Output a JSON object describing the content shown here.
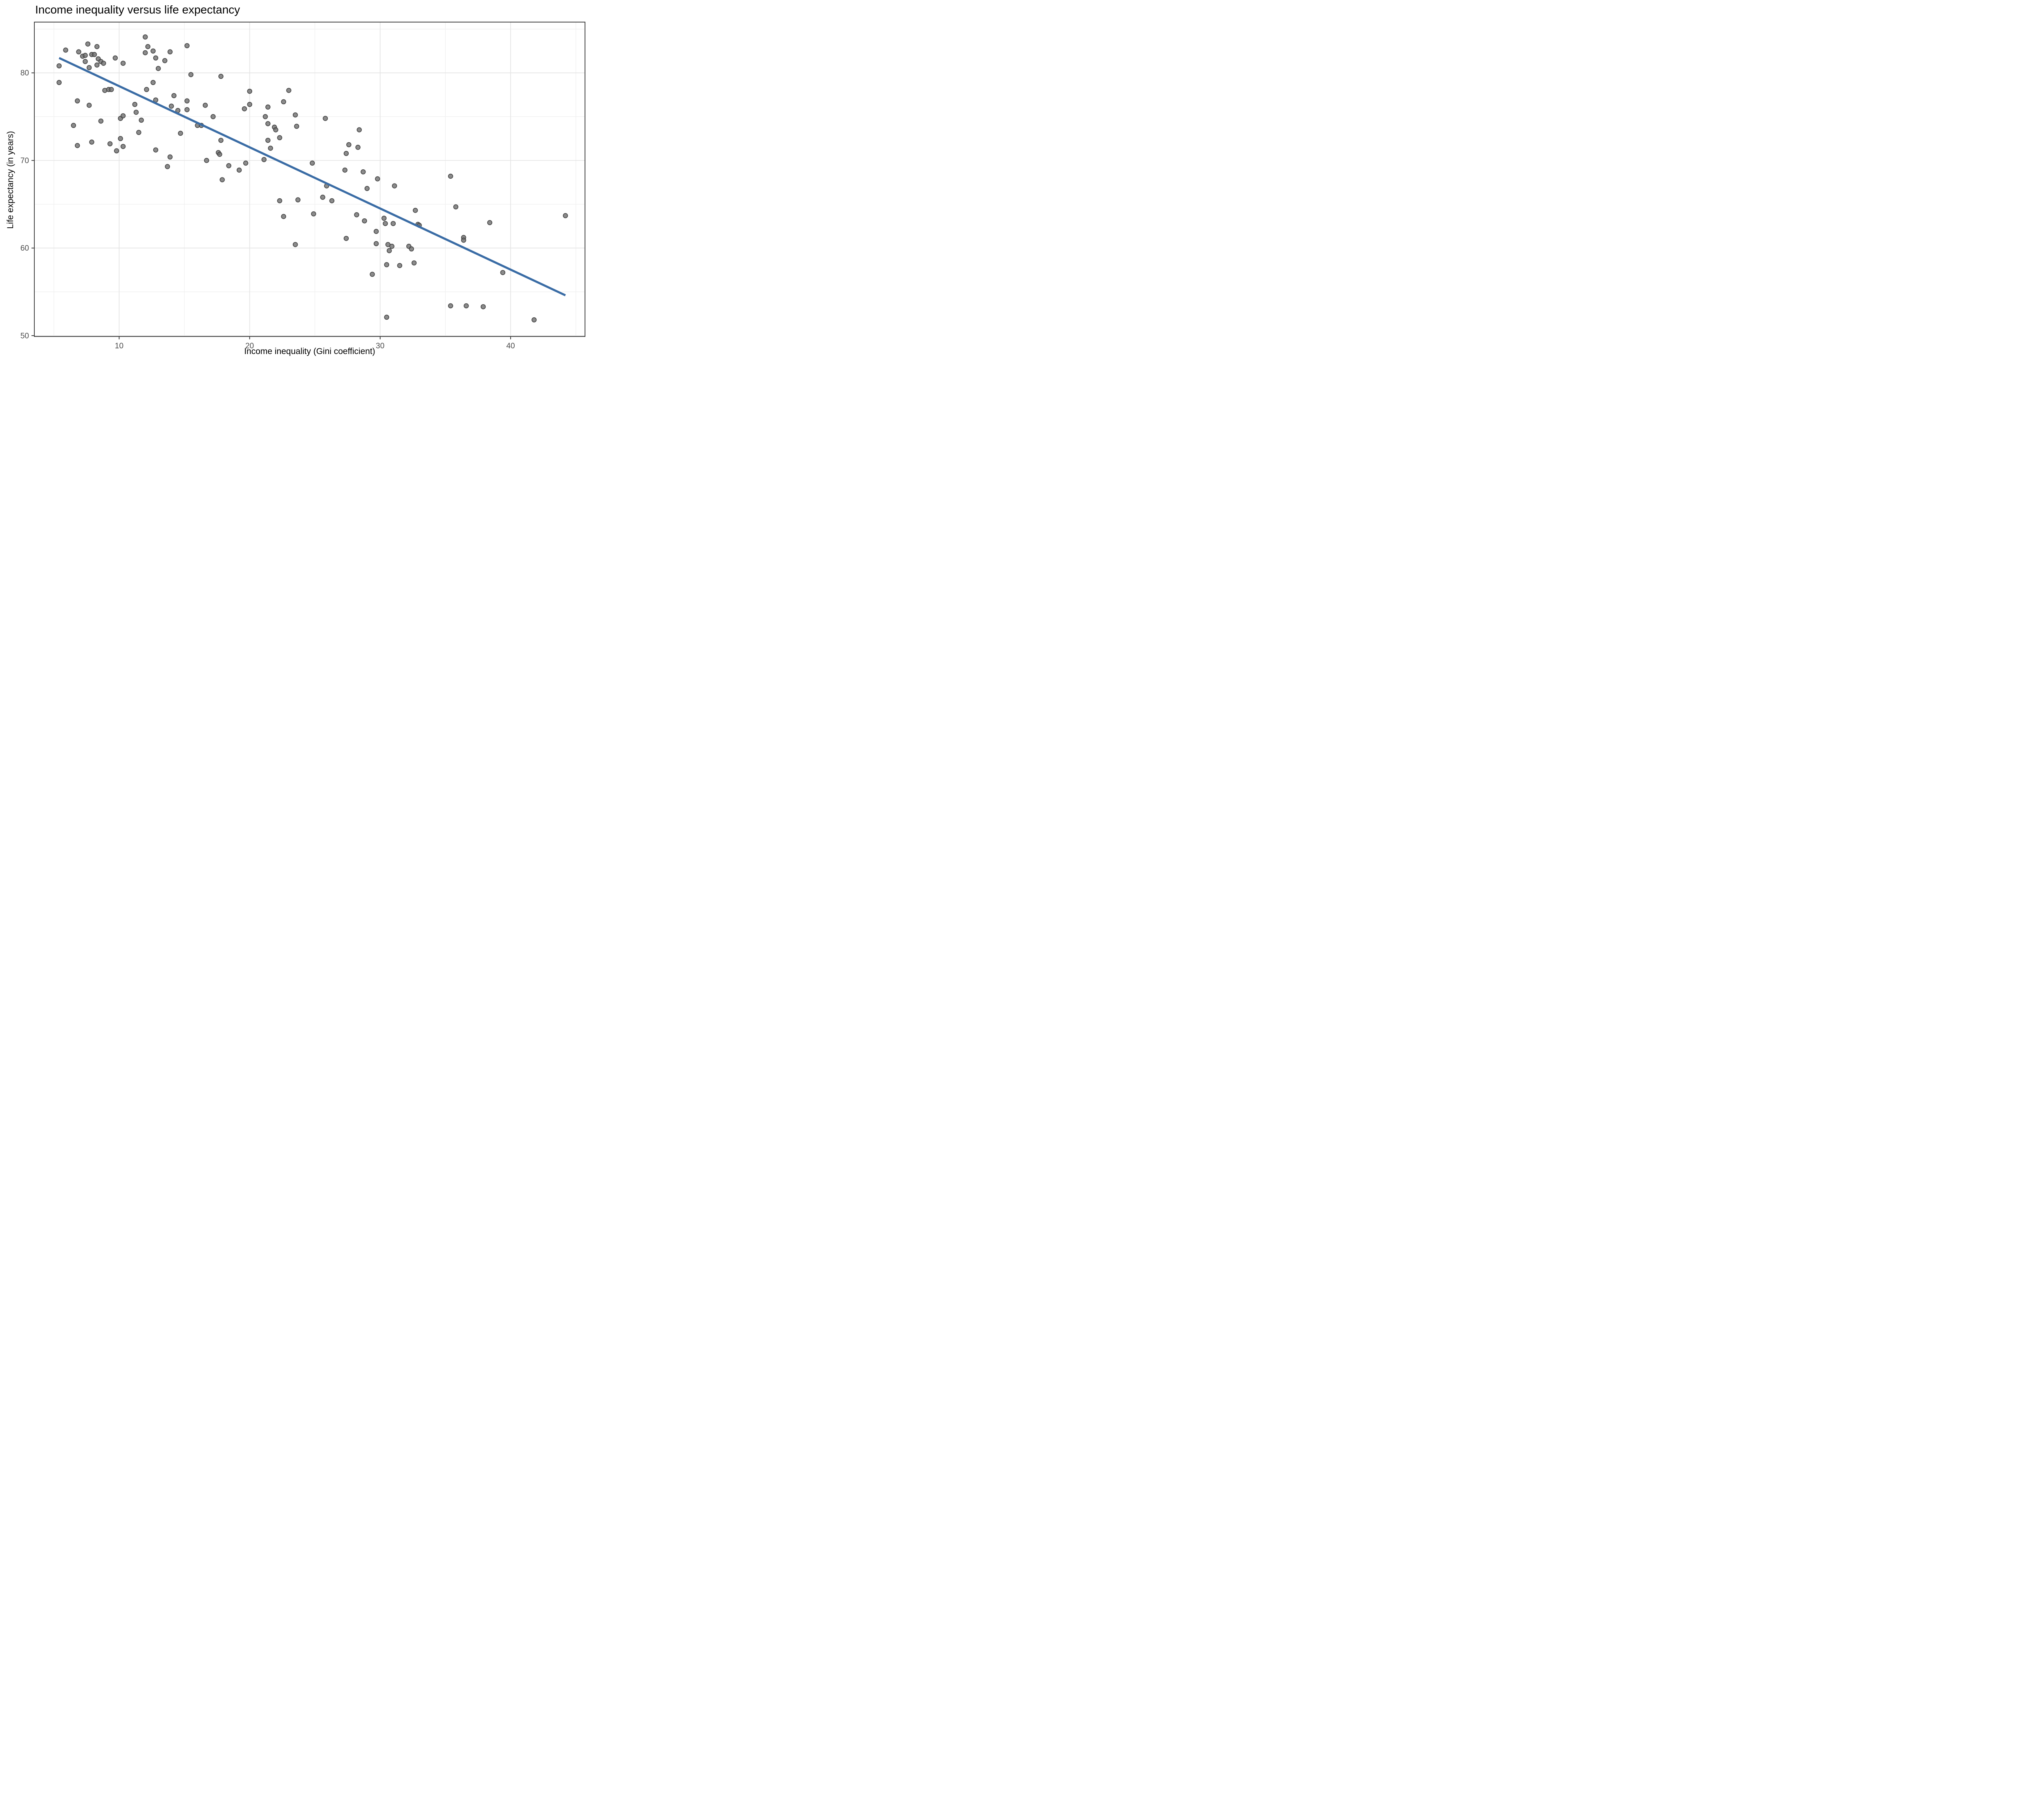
{
  "title": "Income inequality versus life expectancy",
  "chart_data": {
    "type": "scatter",
    "title": "Income inequality versus life expectancy",
    "xlabel": "Income inequality (Gini coefficient)",
    "ylabel": "Life expectancy (in years)",
    "xlim": [
      3.5,
      45.7
    ],
    "ylim": [
      49.9,
      85.8
    ],
    "x_major_ticks": [
      10,
      20,
      30,
      40
    ],
    "y_major_ticks": [
      50,
      60,
      70,
      80
    ],
    "x_minor_ticks": [
      5,
      15,
      25,
      35,
      45
    ],
    "y_minor_ticks": [
      55,
      65,
      75,
      85
    ],
    "grid": true,
    "legend": false,
    "points": [
      [
        5.9,
        82.6
      ],
      [
        6.9,
        82.4
      ],
      [
        7.6,
        83.3
      ],
      [
        8.3,
        83.0
      ],
      [
        7.2,
        81.9
      ],
      [
        7.4,
        82.0
      ],
      [
        7.9,
        82.1
      ],
      [
        8.1,
        82.1
      ],
      [
        7.4,
        81.3
      ],
      [
        7.7,
        80.6
      ],
      [
        8.4,
        81.6
      ],
      [
        8.6,
        81.3
      ],
      [
        8.3,
        80.9
      ],
      [
        8.8,
        81.1
      ],
      [
        5.4,
        80.8
      ],
      [
        9.7,
        81.7
      ],
      [
        10.3,
        81.1
      ],
      [
        12.0,
        84.1
      ],
      [
        12.2,
        83.0
      ],
      [
        12.0,
        82.3
      ],
      [
        12.6,
        82.5
      ],
      [
        12.8,
        81.7
      ],
      [
        13.5,
        81.4
      ],
      [
        13.9,
        82.4
      ],
      [
        13.0,
        80.5
      ],
      [
        5.4,
        78.9
      ],
      [
        12.6,
        78.9
      ],
      [
        12.1,
        78.1
      ],
      [
        8.9,
        78.0
      ],
      [
        9.2,
        78.1
      ],
      [
        9.4,
        78.1
      ],
      [
        6.8,
        76.8
      ],
      [
        7.7,
        76.3
      ],
      [
        11.2,
        76.4
      ],
      [
        12.8,
        76.9
      ],
      [
        14.0,
        76.2
      ],
      [
        11.3,
        75.5
      ],
      [
        10.1,
        74.8
      ],
      [
        10.3,
        75.1
      ],
      [
        8.6,
        74.5
      ],
      [
        11.7,
        74.6
      ],
      [
        6.5,
        74.0
      ],
      [
        15.2,
        83.1
      ],
      [
        15.5,
        79.8
      ],
      [
        17.8,
        79.6
      ],
      [
        20.0,
        77.9
      ],
      [
        23.0,
        78.0
      ],
      [
        15.2,
        76.8
      ],
      [
        16.6,
        76.3
      ],
      [
        15.2,
        75.8
      ],
      [
        14.5,
        75.7
      ],
      [
        14.2,
        77.4
      ],
      [
        16.0,
        74.0
      ],
      [
        16.3,
        74.0
      ],
      [
        17.2,
        75.0
      ],
      [
        20.0,
        76.4
      ],
      [
        19.6,
        75.9
      ],
      [
        21.4,
        76.1
      ],
      [
        22.6,
        76.7
      ],
      [
        23.5,
        75.2
      ],
      [
        21.2,
        75.0
      ],
      [
        21.4,
        74.2
      ],
      [
        23.6,
        73.9
      ],
      [
        25.8,
        74.8
      ],
      [
        6.8,
        71.7
      ],
      [
        7.9,
        72.1
      ],
      [
        9.3,
        71.9
      ],
      [
        10.1,
        72.5
      ],
      [
        9.8,
        71.1
      ],
      [
        10.3,
        71.6
      ],
      [
        11.5,
        73.2
      ],
      [
        12.8,
        71.2
      ],
      [
        13.9,
        70.4
      ],
      [
        13.7,
        69.3
      ],
      [
        14.7,
        73.1
      ],
      [
        17.8,
        72.3
      ],
      [
        17.6,
        70.9
      ],
      [
        17.7,
        70.7
      ],
      [
        16.7,
        70.0
      ],
      [
        18.4,
        69.4
      ],
      [
        19.2,
        68.9
      ],
      [
        19.7,
        69.7
      ],
      [
        17.9,
        67.8
      ],
      [
        21.1,
        70.1
      ],
      [
        21.4,
        72.3
      ],
      [
        21.6,
        71.4
      ],
      [
        21.9,
        73.8
      ],
      [
        22.0,
        73.5
      ],
      [
        22.3,
        72.6
      ],
      [
        24.8,
        69.7
      ],
      [
        22.3,
        65.4
      ],
      [
        23.7,
        65.5
      ],
      [
        22.6,
        63.6
      ],
      [
        28.4,
        73.5
      ],
      [
        27.6,
        71.8
      ],
      [
        28.3,
        71.5
      ],
      [
        27.4,
        70.8
      ],
      [
        27.3,
        68.9
      ],
      [
        28.7,
        68.7
      ],
      [
        29.8,
        67.9
      ],
      [
        31.1,
        67.1
      ],
      [
        25.9,
        67.1
      ],
      [
        29.0,
        66.8
      ],
      [
        25.6,
        65.8
      ],
      [
        26.3,
        65.4
      ],
      [
        35.4,
        68.2
      ],
      [
        24.9,
        63.9
      ],
      [
        28.2,
        63.8
      ],
      [
        28.8,
        63.1
      ],
      [
        30.3,
        63.4
      ],
      [
        30.4,
        62.8
      ],
      [
        31.0,
        62.8
      ],
      [
        32.7,
        64.3
      ],
      [
        32.9,
        62.7
      ],
      [
        33.0,
        62.6
      ],
      [
        35.8,
        64.7
      ],
      [
        38.4,
        62.9
      ],
      [
        44.2,
        63.7
      ],
      [
        23.5,
        60.4
      ],
      [
        27.4,
        61.1
      ],
      [
        29.7,
        61.9
      ],
      [
        29.7,
        60.5
      ],
      [
        30.6,
        60.4
      ],
      [
        30.9,
        60.2
      ],
      [
        30.7,
        59.7
      ],
      [
        32.2,
        60.2
      ],
      [
        32.4,
        59.9
      ],
      [
        30.5,
        58.1
      ],
      [
        31.5,
        58.0
      ],
      [
        32.6,
        58.3
      ],
      [
        29.4,
        57.0
      ],
      [
        35.4,
        53.4
      ],
      [
        30.5,
        52.1
      ],
      [
        36.4,
        61.2
      ],
      [
        36.4,
        60.9
      ],
      [
        39.4,
        57.2
      ],
      [
        36.6,
        53.4
      ],
      [
        37.9,
        53.3
      ],
      [
        41.8,
        51.8
      ]
    ],
    "trend_line": {
      "type": "linear",
      "x1": 5.4,
      "y1": 81.7,
      "x2": 44.2,
      "y2": 54.6
    },
    "colors": {
      "point_fill": "#6e6e6e",
      "point_stroke": "#3d3d3d",
      "point_opacity": "0.8",
      "trend_line": "#3a6ca5",
      "grid_major": "#e4e4e4",
      "grid_minor": "#efefef",
      "panel_border": "#333333",
      "tick_mark": "#333333",
      "tick_label": "#4d4d4d",
      "background": "#ffffff"
    }
  }
}
